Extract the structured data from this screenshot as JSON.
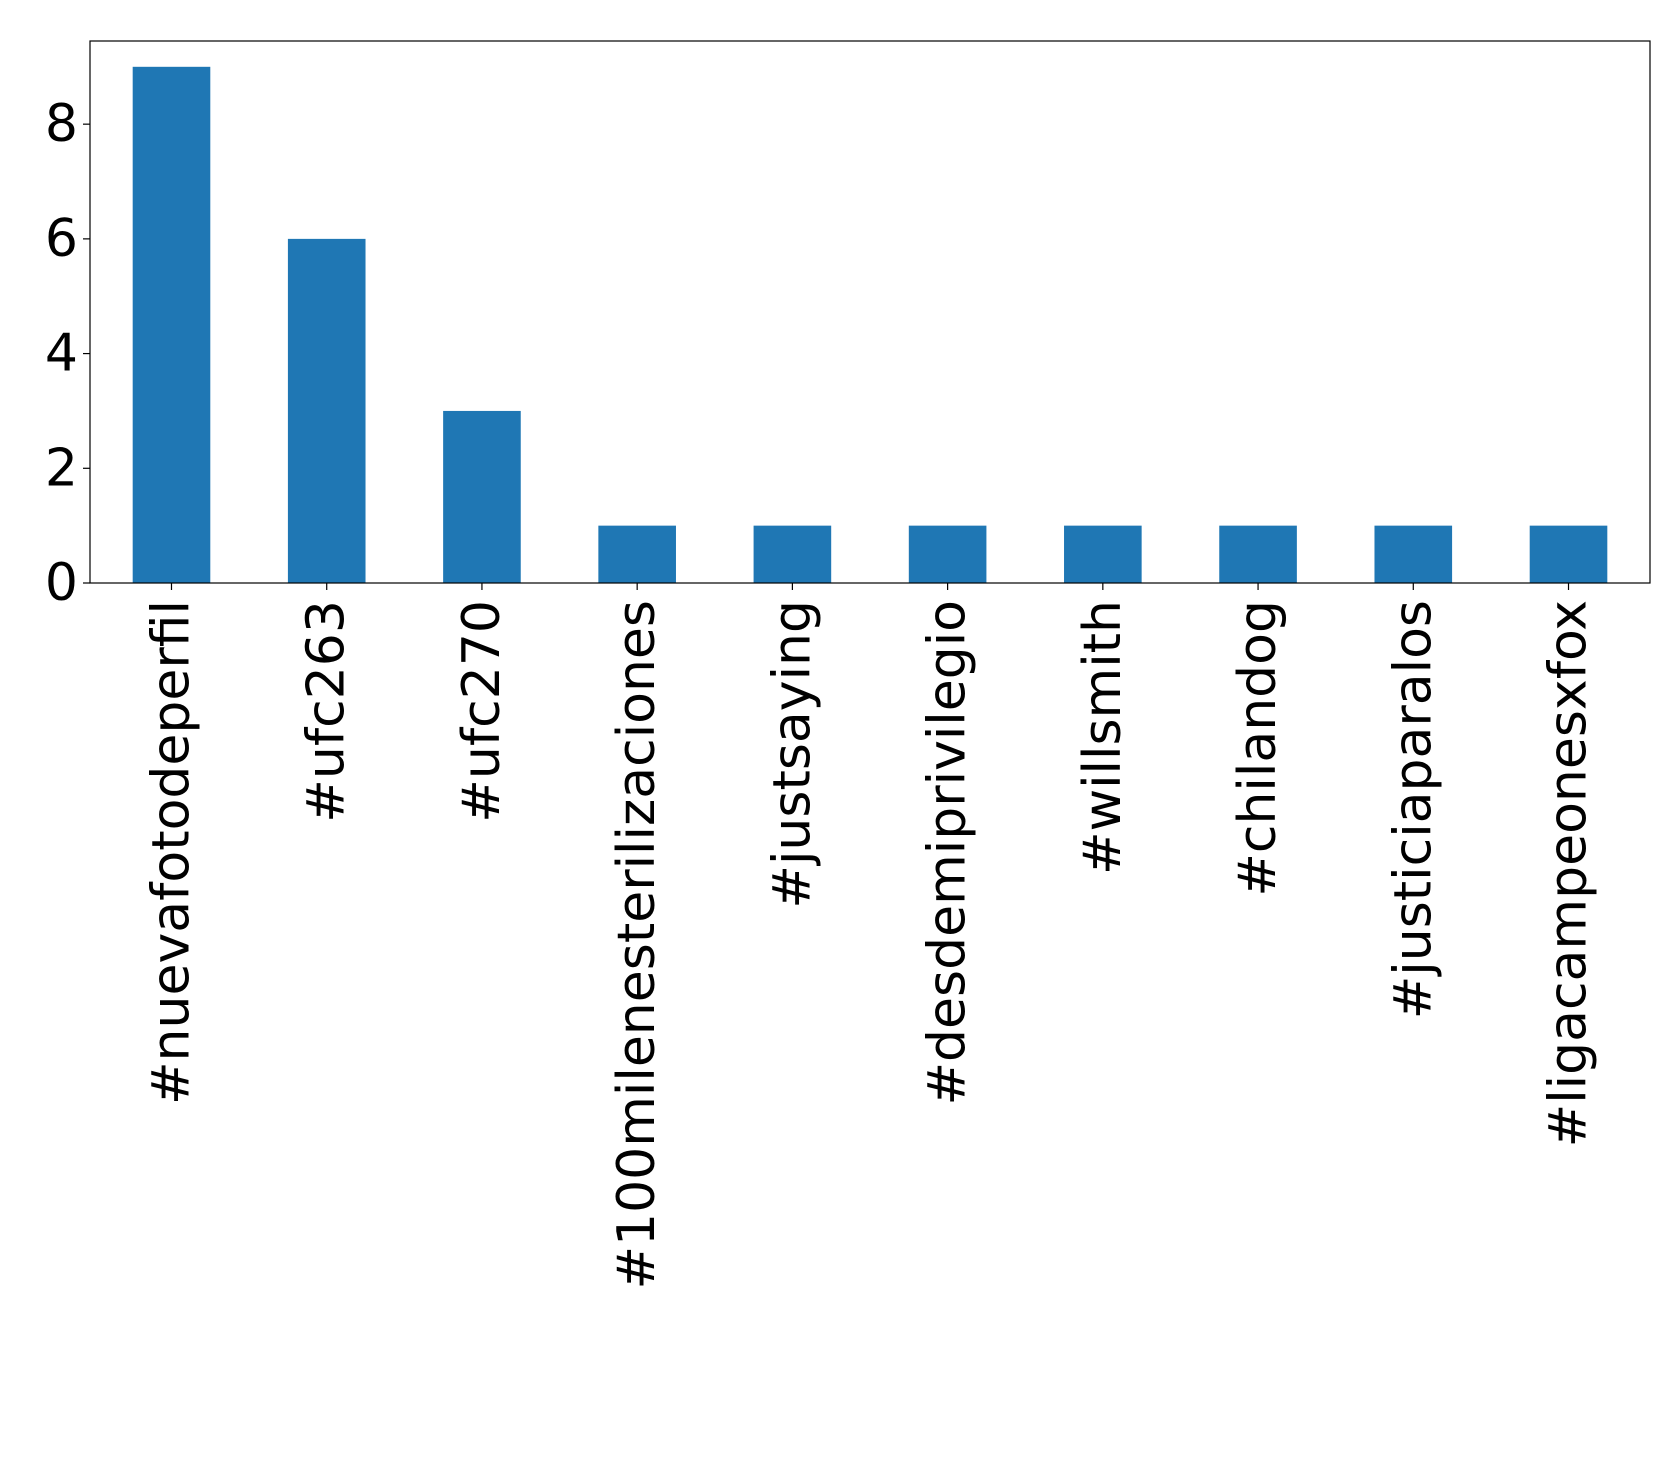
{
  "chart_data": {
    "type": "bar",
    "title": "",
    "xlabel": "",
    "ylabel": "",
    "categories": [
      "#nuevafotodeperfil",
      "#ufc263",
      "#ufc270",
      "#100milenesterilizaciones",
      "#justsaying",
      "#desdemiprivilegio",
      "#willsmith",
      "#chilandog",
      "#justiciaparalos",
      "#ligacampeonesxfox"
    ],
    "values": [
      9,
      6,
      3,
      1,
      1,
      1,
      1,
      1,
      1,
      1
    ],
    "ylim": [
      0,
      9.45
    ],
    "yticks": [
      0,
      2,
      4,
      6,
      8
    ],
    "bar_color": "#1f77b4",
    "grid": false,
    "legend": "none"
  }
}
